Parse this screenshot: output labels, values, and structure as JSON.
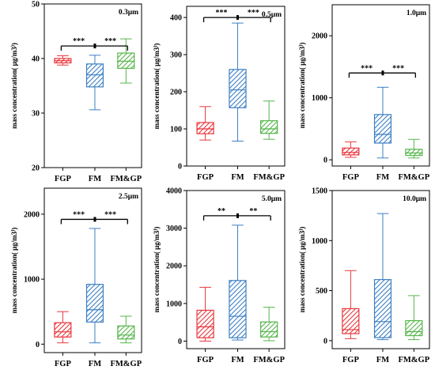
{
  "colors": {
    "red": "#e8363b",
    "blue": "#3b7fc4",
    "green": "#55b54a",
    "axis": "#000000"
  },
  "chart_data": [
    {
      "type": "box",
      "label": "0.3μm",
      "ylabel": "mass concentration(  μg/m3)",
      "ylim": [
        20,
        50
      ],
      "yticks": [
        20,
        30,
        40,
        50
      ],
      "categories": [
        "FGP",
        "FM",
        "FM&GP"
      ],
      "boxes": [
        {
          "whislo": 38.8,
          "q1": 39.2,
          "med": 39.6,
          "q3": 40.0,
          "whishi": 40.5
        },
        {
          "whislo": 30.6,
          "q1": 34.8,
          "med": 37.0,
          "q3": 39.0,
          "whishi": 40.6
        },
        {
          "whislo": 35.5,
          "q1": 38.2,
          "med": 39.5,
          "q3": 41.0,
          "whishi": 43.6
        }
      ],
      "brackets": [
        {
          "from": 0,
          "to": 1,
          "label": "***",
          "y": 42.3
        },
        {
          "from": 1,
          "to": 2,
          "label": "***",
          "y": 42.3
        }
      ]
    },
    {
      "type": "box",
      "label": "0.5μm",
      "ylabel": "mass concentration(  μg/m3)",
      "ylim": [
        0,
        430
      ],
      "yticks": [
        0,
        100,
        200,
        300,
        400
      ],
      "categories": [
        "FGP",
        "FM",
        "FM&GP"
      ],
      "boxes": [
        {
          "whislo": 70,
          "q1": 87,
          "med": 100,
          "q3": 117,
          "whishi": 160
        },
        {
          "whislo": 67,
          "q1": 157,
          "med": 205,
          "q3": 260,
          "whishi": 385
        },
        {
          "whislo": 72,
          "q1": 88,
          "med": 100,
          "q3": 122,
          "whishi": 175
        }
      ],
      "brackets": [
        {
          "from": 0,
          "to": 1,
          "label": "***",
          "y": 400
        },
        {
          "from": 1,
          "to": 2,
          "label": "***",
          "y": 400
        }
      ]
    },
    {
      "type": "box",
      "label": "1.0μm",
      "ylabel": "mass concentration(  μg/m3)",
      "ylim": [
        -100,
        2500
      ],
      "yticks": [
        0,
        1000,
        2000
      ],
      "categories": [
        "FGP",
        "FM",
        "FM&GP"
      ],
      "boxes": [
        {
          "whislo": 40,
          "q1": 80,
          "med": 120,
          "q3": 190,
          "whishi": 290
        },
        {
          "whislo": 30,
          "q1": 270,
          "med": 410,
          "q3": 730,
          "whishi": 1170
        },
        {
          "whislo": 30,
          "q1": 70,
          "med": 110,
          "q3": 170,
          "whishi": 330
        }
      ],
      "brackets": [
        {
          "from": 0,
          "to": 1,
          "label": "***",
          "y": 1400
        },
        {
          "from": 1,
          "to": 2,
          "label": "***",
          "y": 1400
        }
      ]
    },
    {
      "type": "box",
      "label": "2.5μm",
      "ylabel": "mass concentration(  μg/m3)",
      "ylim": [
        -130,
        2400
      ],
      "yticks": [
        0,
        1000,
        2000
      ],
      "categories": [
        "FGP",
        "FM",
        "FM&GP"
      ],
      "boxes": [
        {
          "whislo": 20,
          "q1": 110,
          "med": 190,
          "q3": 330,
          "whishi": 500
        },
        {
          "whislo": 20,
          "q1": 340,
          "med": 530,
          "q3": 920,
          "whishi": 1780
        },
        {
          "whislo": 20,
          "q1": 80,
          "med": 140,
          "q3": 280,
          "whishi": 430
        }
      ],
      "brackets": [
        {
          "from": 0,
          "to": 1,
          "label": "***",
          "y": 1920
        },
        {
          "from": 1,
          "to": 2,
          "label": "***",
          "y": 1920
        }
      ]
    },
    {
      "type": "box",
      "label": "5.0μm",
      "ylabel": "mass concentration(  μg/m3)",
      "ylim": [
        -200,
        4000
      ],
      "yticks": [
        0,
        1000,
        2000,
        3000,
        4000
      ],
      "categories": [
        "FGP",
        "FM",
        "FM&GP"
      ],
      "boxes": [
        {
          "whislo": 0,
          "q1": 90,
          "med": 380,
          "q3": 820,
          "whishi": 1430
        },
        {
          "whislo": 30,
          "q1": 90,
          "med": 660,
          "q3": 1610,
          "whishi": 3080
        },
        {
          "whislo": 10,
          "q1": 110,
          "med": 250,
          "q3": 510,
          "whishi": 900
        }
      ],
      "brackets": [
        {
          "from": 0,
          "to": 1,
          "label": "**",
          "y": 3330
        },
        {
          "from": 1,
          "to": 2,
          "label": "**",
          "y": 3330
        }
      ]
    },
    {
      "type": "box",
      "label": "10.0μm",
      "ylabel": "mass concentration(  μg/m3)",
      "ylim": [
        -80,
        1500
      ],
      "yticks": [
        0,
        500,
        1000,
        1500
      ],
      "categories": [
        "FGP",
        "FM",
        "FM&GP"
      ],
      "boxes": [
        {
          "whislo": 20,
          "q1": 70,
          "med": 110,
          "q3": 320,
          "whishi": 700
        },
        {
          "whislo": 10,
          "q1": 30,
          "med": 190,
          "q3": 610,
          "whishi": 1270
        },
        {
          "whislo": 10,
          "q1": 50,
          "med": 90,
          "q3": 200,
          "whishi": 450
        }
      ],
      "brackets": []
    }
  ]
}
